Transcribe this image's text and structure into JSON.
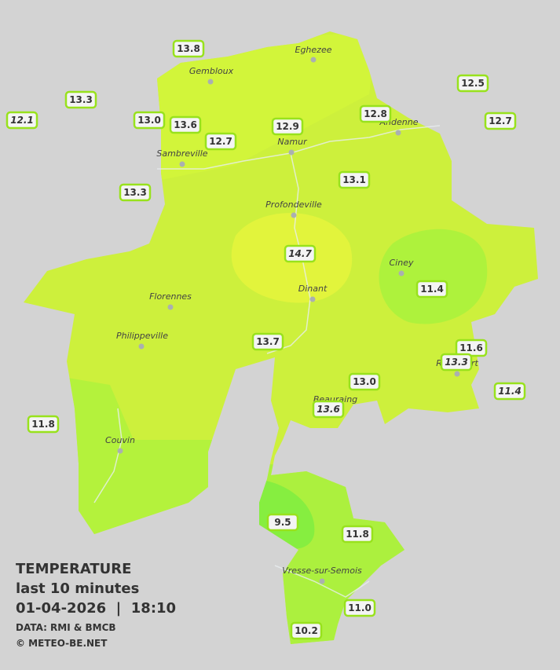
{
  "legend": {
    "title": "TEMPERATURE",
    "period": "last 10 minutes",
    "datetime": "01-04-2026  |  18:10",
    "source": "DATA: RMI & BMCB",
    "copyright": "© METEO-BE.NET"
  },
  "towns": [
    "Eghezee",
    "Gembloux",
    "Andenne",
    "Namur",
    "Sambreville",
    "Profondeville",
    "Ciney",
    "Dinant",
    "Florennes",
    "Philippeville",
    "Rochefort",
    "Beauraing",
    "Couvin",
    "Vresse-sur-Semois"
  ],
  "stations": [
    "13.8",
    "12.1",
    "13.3",
    "13.0",
    "13.6",
    "12.7",
    "12.9",
    "12.8",
    "12.5",
    "12.7",
    "13.3",
    "13.1",
    "14.7",
    "11.4",
    "13.7",
    "11.6",
    "13.3",
    "13.0",
    "13.6",
    "11.4",
    "11.8",
    "9.5",
    "11.8",
    "11.0",
    "10.2"
  ]
}
